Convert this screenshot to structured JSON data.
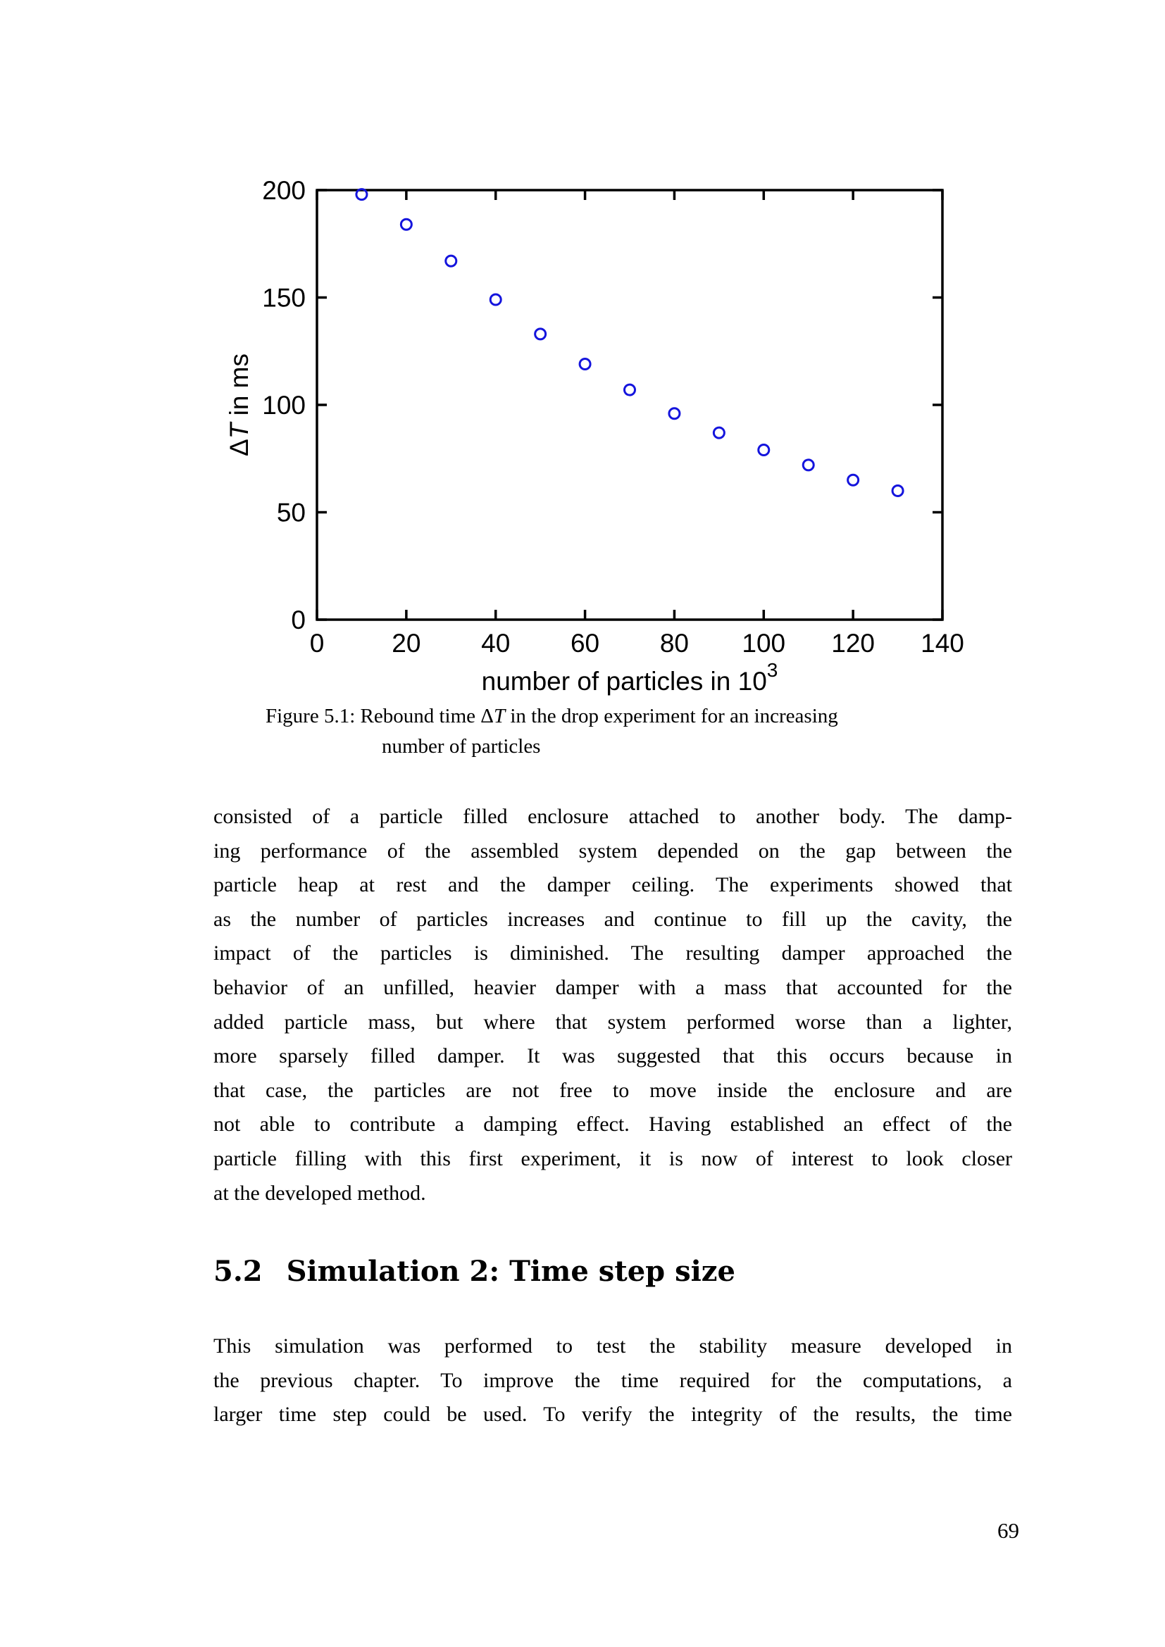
{
  "page": {
    "number": "69"
  },
  "figure_caption": {
    "line1_pre": "Figure 5.1: Rebound time Δ",
    "line1_italic": "T",
    "line1_post": " in the drop experiment for an increasing",
    "line2": "number of particles"
  },
  "chart_data": {
    "type": "scatter",
    "x": [
      10,
      20,
      30,
      40,
      50,
      60,
      70,
      80,
      90,
      100,
      110,
      120,
      130
    ],
    "y": [
      198,
      184,
      167,
      149,
      133,
      119,
      107,
      96,
      87,
      79,
      72,
      65,
      60
    ],
    "xlim": [
      0,
      140
    ],
    "ylim": [
      0,
      200
    ],
    "xticks": [
      0,
      20,
      40,
      60,
      80,
      100,
      120,
      140
    ],
    "yticks": [
      0,
      50,
      100,
      150,
      200
    ],
    "xlabel_main": "number of particles in 10",
    "xlabel_exponent": "3",
    "ylabel_delta": "Δ",
    "ylabel_T_italic": "T",
    "ylabel_rest": " in ms",
    "title": "",
    "grid": false,
    "legend": null,
    "marker": "open-circle",
    "point_color": "#1414dd",
    "axis_color": "#000000"
  },
  "section": {
    "number": "5.2",
    "title": "Simulation 2: Time step size"
  },
  "paragraph1": {
    "justify_last_line": false,
    "lines": [
      "consisted of a particle filled enclosure attached to another body. The damp-",
      "ing performance of the assembled system depended on the gap between the",
      "particle heap at rest and the damper ceiling. The experiments showed that",
      "as the number of particles increases and continue to fill up the cavity, the",
      "impact of the particles is diminished. The resulting damper approached the",
      "behavior of an unfilled, heavier damper with a mass that accounted for the",
      "added particle mass, but where that system performed worse than a lighter,",
      "more sparsely filled damper. It was suggested that this occurs because in",
      "that case, the particles are not free to move inside the enclosure and are",
      "not able to contribute a damping effect. Having established an effect of the",
      "particle filling with this first experiment, it is now of interest to look closer",
      "at the developed method."
    ]
  },
  "paragraph2": {
    "justify_last_line": true,
    "lines": [
      "This simulation was performed to test the stability measure developed in",
      "the previous chapter. To improve the time required for the computations, a",
      "larger time step could be used. To verify the integrity of the results, the time"
    ]
  }
}
